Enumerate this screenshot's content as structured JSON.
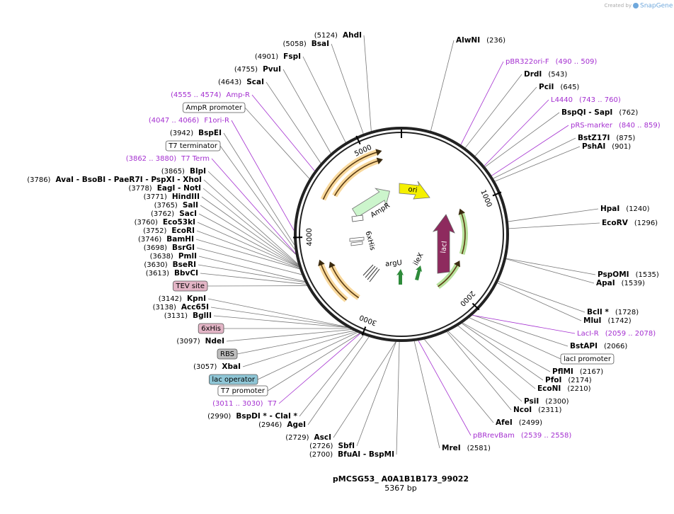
{
  "credit": {
    "prefix": "Created by",
    "brand": "SnapGene"
  },
  "title": "pMCSG53_ A0A1B1B173_99022",
  "length": {
    "value": 5367,
    "label": "5367 bp"
  },
  "ring_ticks": [
    1000,
    2000,
    3000,
    4000,
    5000
  ],
  "features": [
    {
      "name": "AmpR"
    },
    {
      "name": "ori"
    },
    {
      "name": "lacI"
    },
    {
      "name": "6xHis"
    },
    {
      "name": "argU"
    },
    {
      "name": "ileX"
    }
  ],
  "labels": [
    {
      "name": "AhdI",
      "site": {
        "value": 5124,
        "label": "(5124)"
      }
    },
    {
      "name": "BsaI",
      "site": {
        "value": 5058,
        "label": "(5058)"
      }
    },
    {
      "name": "FspI",
      "site": {
        "value": 4901,
        "label": "(4901)"
      }
    },
    {
      "name": "PvuI",
      "site": {
        "value": 4755,
        "label": "(4755)"
      }
    },
    {
      "name": "ScaI",
      "site": {
        "value": 4643,
        "label": "(4643)"
      }
    },
    {
      "name": "Amp-R",
      "kind": "primer",
      "site": {
        "start": 4555,
        "end": 4574,
        "label": "(4555 .. 4574)"
      }
    },
    {
      "name": "AmpR promoter",
      "kind": "feature",
      "color": "#ffffff"
    },
    {
      "name": "F1ori-R",
      "kind": "primer",
      "site": {
        "start": 4047,
        "end": 4066,
        "label": "(4047 .. 4066)"
      }
    },
    {
      "name": "BspEI",
      "site": {
        "value": 3942,
        "label": "(3942)"
      }
    },
    {
      "name": "T7 terminator",
      "kind": "feature",
      "color": "#ffffff"
    },
    {
      "name": "T7 Term",
      "kind": "primer",
      "site": {
        "start": 3862,
        "end": 3880,
        "label": "(3862 .. 3880)"
      }
    },
    {
      "name": "BlpI",
      "site": {
        "value": 3865,
        "label": "(3865)"
      }
    },
    {
      "name": "AvaI - BsoBI - PaeR7I - PspXI - XhoI",
      "site": {
        "value": 3786,
        "label": "(3786)"
      }
    },
    {
      "name": "EagI - NotI",
      "site": {
        "value": 3778,
        "label": "(3778)"
      }
    },
    {
      "name": "HindIII",
      "site": {
        "value": 3771,
        "label": "(3771)"
      }
    },
    {
      "name": "SalI",
      "site": {
        "value": 3765,
        "label": "(3765)"
      }
    },
    {
      "name": "SacI",
      "site": {
        "value": 3762,
        "label": "(3762)"
      }
    },
    {
      "name": "Eco53kI",
      "site": {
        "value": 3760,
        "label": "(3760)"
      }
    },
    {
      "name": "EcoRI",
      "site": {
        "value": 3752,
        "label": "(3752)"
      }
    },
    {
      "name": "BamHI",
      "site": {
        "value": 3746,
        "label": "(3746)"
      }
    },
    {
      "name": "BsrGI",
      "site": {
        "value": 3698,
        "label": "(3698)"
      }
    },
    {
      "name": "PmlI",
      "site": {
        "value": 3638,
        "label": "(3638)"
      }
    },
    {
      "name": "BseRI",
      "site": {
        "value": 3630,
        "label": "(3630)"
      }
    },
    {
      "name": "BbvCI",
      "site": {
        "value": 3613,
        "label": "(3613)"
      }
    },
    {
      "name": "TEV site",
      "kind": "feature",
      "color": "#e3b5c6"
    },
    {
      "name": "KpnI",
      "site": {
        "value": 3142,
        "label": "(3142)"
      }
    },
    {
      "name": "Acc65I",
      "site": {
        "value": 3138,
        "label": "(3138)"
      }
    },
    {
      "name": "BglII",
      "site": {
        "value": 3131,
        "label": "(3131)"
      }
    },
    {
      "name": "6xHis",
      "kind": "feature",
      "color": "#e3b5c6"
    },
    {
      "name": "NdeI",
      "site": {
        "value": 3097,
        "label": "(3097)"
      }
    },
    {
      "name": "RBS",
      "kind": "feature",
      "color": "#bdbdbd"
    },
    {
      "name": "XbaI",
      "site": {
        "value": 3057,
        "label": "(3057)"
      }
    },
    {
      "name": "lac operator",
      "kind": "feature",
      "color": "#8fc6d6"
    },
    {
      "name": "T7 promoter",
      "kind": "feature",
      "color": "#ffffff"
    },
    {
      "name": "T7",
      "kind": "primer",
      "site": {
        "start": 3011,
        "end": 3030,
        "label": "(3011 .. 3030)"
      }
    },
    {
      "name": "BspDI * - ClaI *",
      "site": {
        "value": 2990,
        "label": "(2990)"
      }
    },
    {
      "name": "AgeI",
      "site": {
        "value": 2946,
        "label": "(2946)"
      }
    },
    {
      "name": "AscI",
      "site": {
        "value": 2729,
        "label": "(2729)"
      }
    },
    {
      "name": "SbfI",
      "site": {
        "value": 2726,
        "label": "(2726)"
      }
    },
    {
      "name": "BfuAI - BspMI",
      "site": {
        "value": 2700,
        "label": "(2700)"
      }
    },
    {
      "name": "MreI",
      "site": {
        "value": 2581,
        "label": "(2581)"
      }
    },
    {
      "name": "pBRrevBam",
      "kind": "primer",
      "site": {
        "start": 2539,
        "end": 2558,
        "label": "(2539 .. 2558)"
      }
    },
    {
      "name": "AfeI",
      "site": {
        "value": 2499,
        "label": "(2499)"
      }
    },
    {
      "name": "NcoI",
      "site": {
        "value": 2311,
        "label": "(2311)"
      }
    },
    {
      "name": "PsiI",
      "site": {
        "value": 2300,
        "label": "(2300)"
      }
    },
    {
      "name": "EcoNI",
      "site": {
        "value": 2210,
        "label": "(2210)"
      }
    },
    {
      "name": "PfoI",
      "site": {
        "value": 2174,
        "label": "(2174)"
      }
    },
    {
      "name": "PflMI",
      "site": {
        "value": 2167,
        "label": "(2167)"
      }
    },
    {
      "name": "lacI promoter",
      "kind": "feature",
      "color": "#ffffff"
    },
    {
      "name": "BstAPI",
      "site": {
        "value": 2066,
        "label": "(2066)"
      }
    },
    {
      "name": "LacI-R",
      "kind": "primer",
      "site": {
        "start": 2059,
        "end": 2078,
        "label": "(2059 .. 2078)"
      }
    },
    {
      "name": "MluI",
      "site": {
        "value": 1742,
        "label": "(1742)"
      }
    },
    {
      "name": "BclI *",
      "site": {
        "value": 1728,
        "label": "(1728)"
      }
    },
    {
      "name": "ApaI",
      "site": {
        "value": 1539,
        "label": "(1539)"
      }
    },
    {
      "name": "PspOMI",
      "site": {
        "value": 1535,
        "label": "(1535)"
      }
    },
    {
      "name": "EcoRV",
      "site": {
        "value": 1296,
        "label": "(1296)"
      }
    },
    {
      "name": "HpaI",
      "site": {
        "value": 1240,
        "label": "(1240)"
      }
    },
    {
      "name": "PshAI",
      "site": {
        "value": 901,
        "label": "(901)"
      }
    },
    {
      "name": "BstZ17I",
      "site": {
        "value": 875,
        "label": "(875)"
      }
    },
    {
      "name": "pRS-marker",
      "kind": "primer",
      "site": {
        "start": 840,
        "end": 859,
        "label": "(840 .. 859)"
      }
    },
    {
      "name": "BspQI - SapI",
      "site": {
        "value": 762,
        "label": "(762)"
      }
    },
    {
      "name": "L4440",
      "kind": "primer",
      "site": {
        "start": 743,
        "end": 760,
        "label": "(743 .. 760)"
      }
    },
    {
      "name": "PciI",
      "site": {
        "value": 645,
        "label": "(645)"
      }
    },
    {
      "name": "DrdI",
      "site": {
        "value": 543,
        "label": "(543)"
      }
    },
    {
      "name": "pBR322ori-F",
      "kind": "primer",
      "site": {
        "start": 490,
        "end": 509,
        "label": "(490 .. 509)"
      }
    },
    {
      "name": "AlwNI",
      "site": {
        "value": 236,
        "label": "(236)"
      }
    }
  ]
}
